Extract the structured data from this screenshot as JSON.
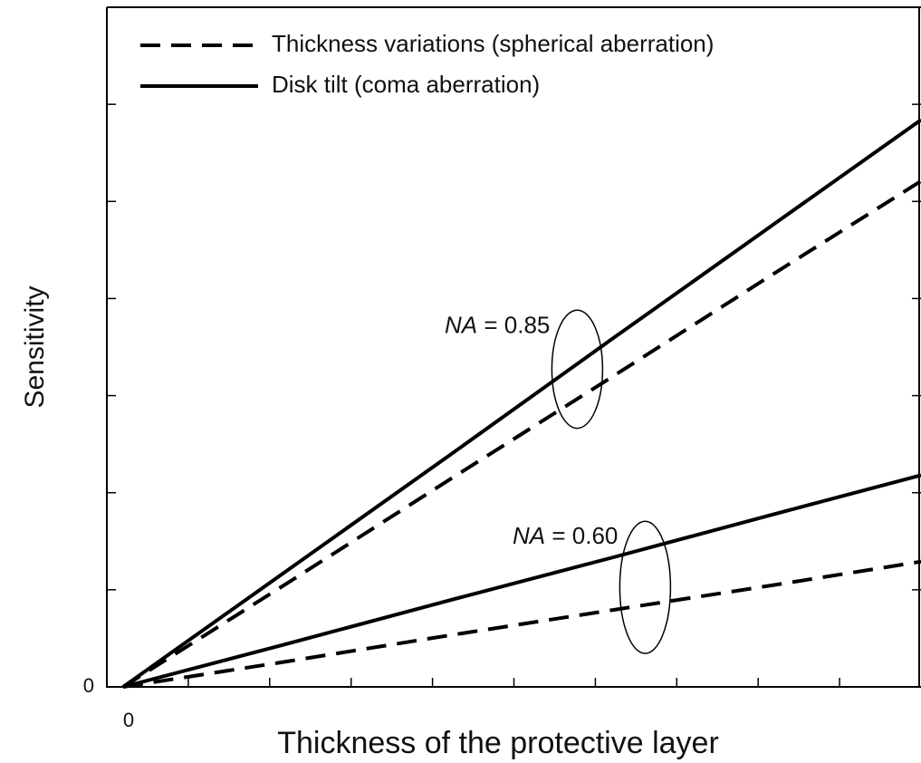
{
  "chart_data": {
    "type": "line",
    "x_label": "Thickness of the protective layer",
    "y_label": "Sensitivity",
    "x": [
      0,
      2,
      4,
      6,
      8,
      9.8
    ],
    "xlim": [
      -0.2,
      9.8
    ],
    "ylim": [
      0,
      7
    ],
    "xticks": [
      0
    ],
    "yticks": [
      0
    ],
    "minor_xticks": [
      0.8,
      1.8,
      2.8,
      3.8,
      4.8,
      5.8,
      6.8,
      7.8,
      8.8
    ],
    "minor_yticks": [
      1,
      2,
      3,
      4,
      5,
      6
    ],
    "color": "#000000",
    "legend": [
      {
        "name": "Thickness variations (spherical aberration)",
        "style": "dashed"
      },
      {
        "name": "Disk tilt (coma aberration)",
        "style": "solid"
      }
    ],
    "series": [
      {
        "style": "solid",
        "group": 0,
        "values": [
          0,
          1.19,
          2.38,
          3.58,
          4.77,
          5.84
        ]
      },
      {
        "style": "dashed",
        "group": 0,
        "values": [
          0,
          1.06,
          2.13,
          3.19,
          4.26,
          5.21
        ]
      },
      {
        "style": "solid",
        "group": 1,
        "values": [
          0,
          0.44,
          0.89,
          1.33,
          1.78,
          2.18
        ]
      },
      {
        "style": "dashed",
        "group": 1,
        "values": [
          0,
          0.26,
          0.53,
          0.79,
          1.05,
          1.29
        ]
      }
    ],
    "annotations": [
      {
        "symbol": "NA",
        "text": "= 0.85"
      },
      {
        "symbol": "NA",
        "text": "= 0.60"
      }
    ]
  }
}
